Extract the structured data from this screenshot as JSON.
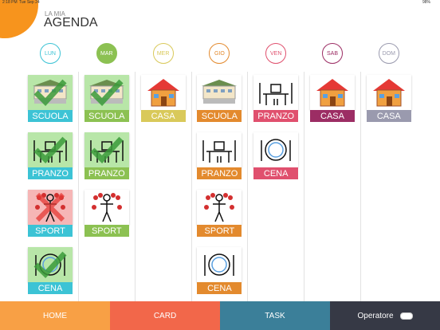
{
  "status": {
    "time": "2:18 PM",
    "date": "Tue Sep 24",
    "battery": "98%"
  },
  "header": {
    "subtitle": "LA MIA",
    "title": "AGENDA"
  },
  "days": [
    {
      "label": "LUN",
      "color": "#3cc3d5",
      "selected": false,
      "cards": [
        {
          "label": "SCUOLA",
          "icon": "school",
          "state": "done"
        },
        {
          "label": "PRANZO",
          "icon": "lunch",
          "state": "done"
        },
        {
          "label": "SPORT",
          "icon": "sport",
          "state": "failed"
        },
        {
          "label": "CENA",
          "icon": "dinner",
          "state": "done"
        }
      ]
    },
    {
      "label": "MAR",
      "color": "#8cc152",
      "selected": true,
      "cards": [
        {
          "label": "SCUOLA",
          "icon": "school",
          "state": "done"
        },
        {
          "label": "PRANZO",
          "icon": "lunch",
          "state": "done"
        },
        {
          "label": "SPORT",
          "icon": "sport",
          "state": "todo"
        }
      ]
    },
    {
      "label": "MER",
      "color": "#d9c95a",
      "selected": false,
      "cards": [
        {
          "label": "CASA",
          "icon": "house",
          "state": "todo"
        }
      ]
    },
    {
      "label": "GIO",
      "color": "#e38a2e",
      "selected": false,
      "cards": [
        {
          "label": "SCUOLA",
          "icon": "school",
          "state": "todo"
        },
        {
          "label": "PRANZO",
          "icon": "lunch",
          "state": "todo"
        },
        {
          "label": "SPORT",
          "icon": "sport",
          "state": "todo"
        },
        {
          "label": "CENA",
          "icon": "dinner",
          "state": "todo"
        }
      ]
    },
    {
      "label": "VEN",
      "color": "#e0506e",
      "selected": false,
      "cards": [
        {
          "label": "PRANZO",
          "icon": "lunch",
          "state": "todo"
        },
        {
          "label": "CENA",
          "icon": "dinner",
          "state": "todo"
        }
      ]
    },
    {
      "label": "SAB",
      "color": "#9c2d64",
      "selected": false,
      "cards": [
        {
          "label": "CASA",
          "icon": "house",
          "state": "todo"
        }
      ]
    },
    {
      "label": "DOM",
      "color": "#9a9aae",
      "selected": false,
      "cards": [
        {
          "label": "CASA",
          "icon": "house",
          "state": "todo"
        }
      ]
    }
  ],
  "tabs": [
    {
      "label": "HOME",
      "color": "#f8a045"
    },
    {
      "label": "CARD",
      "color": "#f2674a"
    },
    {
      "label": "TASK",
      "color": "#3b7f99"
    },
    {
      "label": "Operatore",
      "color": "#363945"
    }
  ]
}
